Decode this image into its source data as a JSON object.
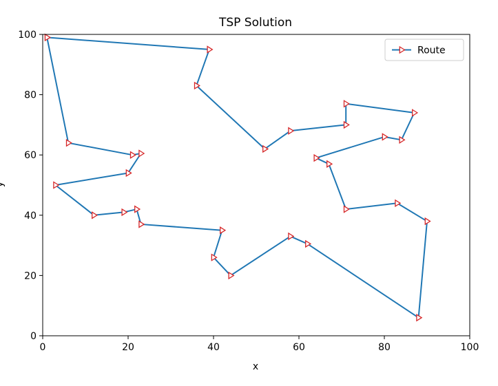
{
  "chart_data": {
    "type": "line",
    "title": "TSP Solution",
    "xlabel": "x",
    "ylabel": "y",
    "xlim": [
      0,
      100
    ],
    "ylim": [
      0,
      100
    ],
    "xticks": [
      0,
      20,
      40,
      60,
      80,
      100
    ],
    "yticks": [
      0,
      20,
      40,
      60,
      80,
      100
    ],
    "grid": false,
    "legend_position": "upper right",
    "series": [
      {
        "name": "Route",
        "line_color": "#1f77b4",
        "marker": "triangle-right",
        "marker_edge_color": "#d62728",
        "points": [
          [
            1,
            99
          ],
          [
            39,
            95
          ],
          [
            36,
            83
          ],
          [
            52,
            62
          ],
          [
            58,
            68
          ],
          [
            71,
            70
          ],
          [
            71,
            77
          ],
          [
            87,
            74
          ],
          [
            84,
            65
          ],
          [
            80,
            66
          ],
          [
            64,
            59
          ],
          [
            67,
            57
          ],
          [
            71,
            42
          ],
          [
            83,
            44
          ],
          [
            90,
            38
          ],
          [
            88,
            6
          ],
          [
            62,
            30.5
          ],
          [
            58,
            33
          ],
          [
            44,
            20
          ],
          [
            40,
            26
          ],
          [
            42,
            35
          ],
          [
            23,
            37
          ],
          [
            22,
            42
          ],
          [
            19,
            41
          ],
          [
            12,
            40
          ],
          [
            3,
            50
          ],
          [
            20,
            54
          ],
          [
            23,
            60.5
          ],
          [
            21,
            60
          ],
          [
            6,
            64
          ],
          [
            1,
            99
          ]
        ]
      }
    ]
  }
}
